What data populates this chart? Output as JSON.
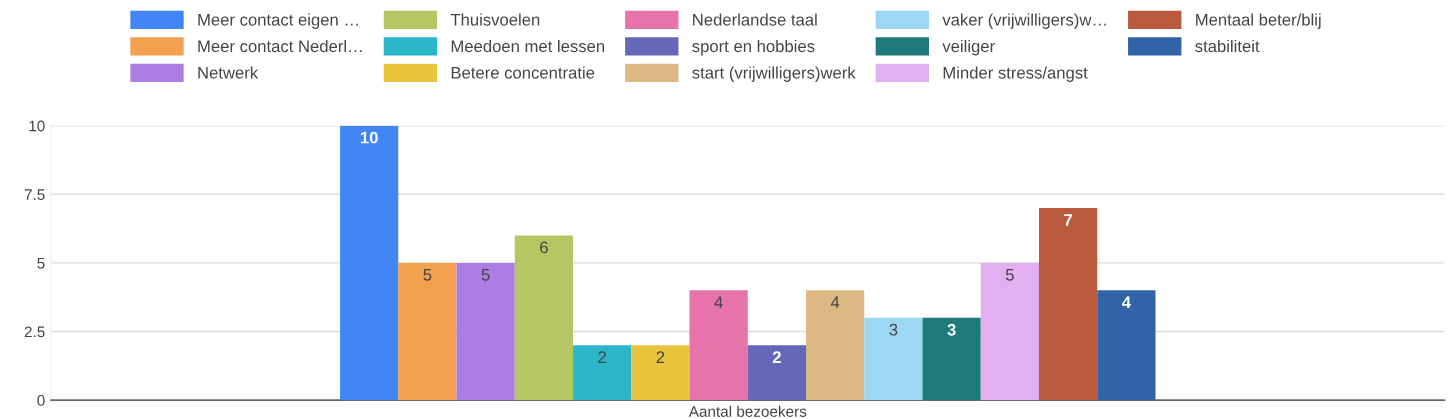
{
  "chart_data": {
    "type": "bar",
    "categories": [
      "Aantal bezoekers"
    ],
    "series": [
      {
        "name": "Meer contact eigen …",
        "color": "#4285f4",
        "values": [
          10
        ]
      },
      {
        "name": "Meer contact Nederl…",
        "color": "#f4a14f",
        "values": [
          5
        ]
      },
      {
        "name": "Netwerk",
        "color": "#ac7ee3",
        "values": [
          5
        ]
      },
      {
        "name": "Thuisvoelen",
        "color": "#b5c763",
        "values": [
          6
        ]
      },
      {
        "name": "Meedoen met lessen",
        "color": "#2bb6ca",
        "values": [
          2
        ]
      },
      {
        "name": "Betere concentratie",
        "color": "#e9c53e",
        "values": [
          2
        ]
      },
      {
        "name": "Nederlandse taal",
        "color": "#e673aa",
        "values": [
          4
        ]
      },
      {
        "name": "sport en hobbies",
        "color": "#6567b9",
        "values": [
          2
        ]
      },
      {
        "name": "start (vrijwilligers)werk",
        "color": "#dcb883",
        "values": [
          4
        ]
      },
      {
        "name": "vaker (vrijwilligers)w…",
        "color": "#9cd8f3",
        "values": [
          3
        ]
      },
      {
        "name": "veiliger",
        "color": "#1f7a7b",
        "values": [
          3
        ]
      },
      {
        "name": "Minder stress/angst",
        "color": "#e2b0f0",
        "values": [
          5
        ]
      },
      {
        "name": "Mentaal beter/blij",
        "color": "#b95a3e",
        "values": [
          7
        ]
      },
      {
        "name": "stabiliteit",
        "color": "#3063a8",
        "values": [
          4
        ]
      }
    ],
    "ylim": [
      0,
      10
    ],
    "yticks": [
      0,
      {
        "value": 2.5,
        "label": "2.5"
      },
      5,
      {
        "value": 7.5,
        "label": "7.5"
      },
      10
    ],
    "grid": "y",
    "legend": "top",
    "data_labels": true
  }
}
